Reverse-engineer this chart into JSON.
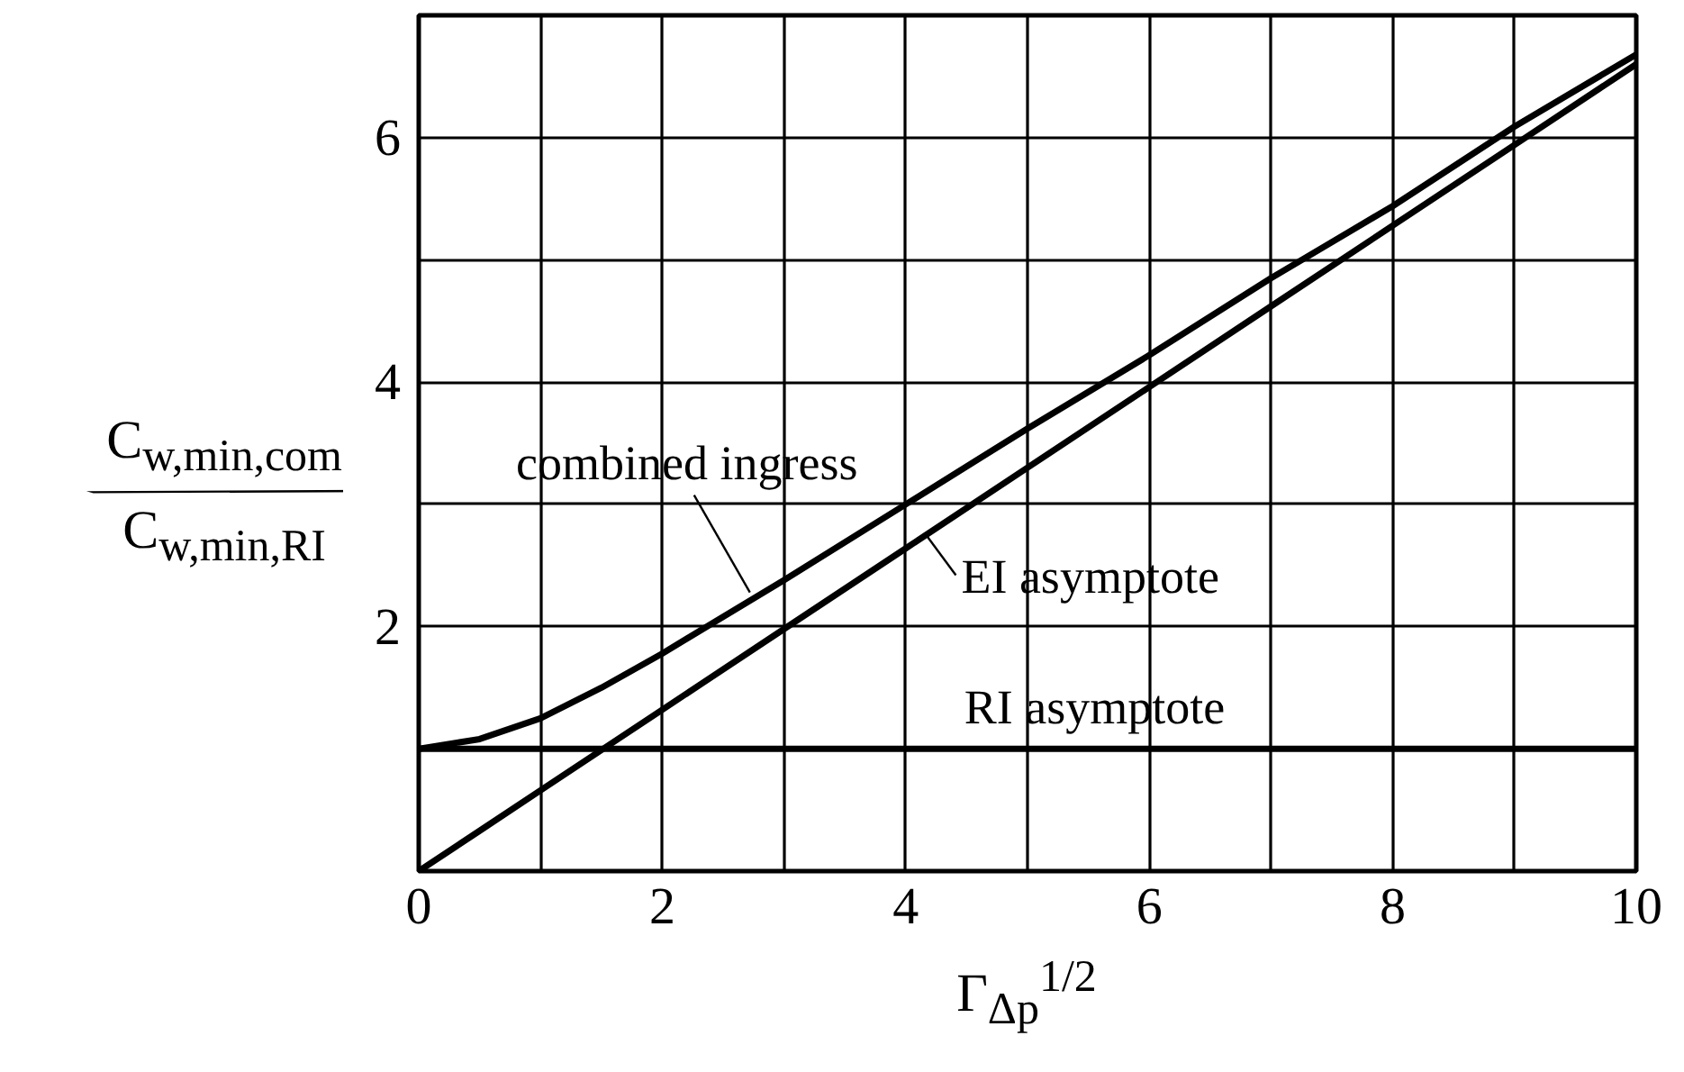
{
  "chart_data": {
    "type": "line",
    "xlabel": "Γ$_{Δp}$$^{1/2}$",
    "ylabel": "C$_{w,min,com}$/C$_{w,min,RI}$",
    "x": [
      0,
      0.5,
      1,
      1.5,
      2,
      3,
      4,
      5,
      6,
      7,
      8,
      9,
      10
    ],
    "series": [
      {
        "color": "#000000",
        "values": [
          1.0,
          1.08,
          1.25,
          1.5,
          1.78,
          2.38,
          3.0,
          3.62,
          4.22,
          4.85,
          5.44,
          6.09,
          6.68
        ]
      },
      {
        "color": "#000000",
        "values": [
          0,
          0.33,
          0.66,
          0.99,
          1.32,
          1.98,
          2.64,
          3.3,
          3.96,
          4.62,
          5.28,
          5.94,
          6.6
        ]
      },
      {
        "color": "#000000",
        "values": [
          1,
          1,
          1,
          1,
          1,
          1,
          1,
          1,
          1,
          1,
          1,
          1,
          1
        ]
      }
    ],
    "annotations": [
      {
        "text": "combined ingress",
        "x": 2.72,
        "y": 2.28
      },
      {
        "text": "EI asymptote",
        "x": 4.16,
        "y": 2.76
      },
      {
        "text": "RI asymptote",
        "x": 4.48,
        "y": 1
      }
    ],
    "xlim": [
      0,
      10
    ],
    "ylim": [
      0,
      7
    ],
    "xticks": [
      0,
      {
        "value": 1,
        "label": null
      },
      2,
      {
        "value": 3,
        "label": null
      },
      4,
      {
        "value": 5,
        "label": null
      },
      6,
      {
        "value": 7,
        "label": null
      },
      8,
      {
        "value": 9,
        "label": null
      },
      10
    ],
    "yticks": [
      {
        "value": 0,
        "label": null
      },
      {
        "value": 1,
        "label": null
      },
      2,
      {
        "value": 3,
        "label": null
      },
      4,
      {
        "value": 5,
        "label": null
      },
      6
    ],
    "grid": true,
    "line_style": "solid"
  }
}
